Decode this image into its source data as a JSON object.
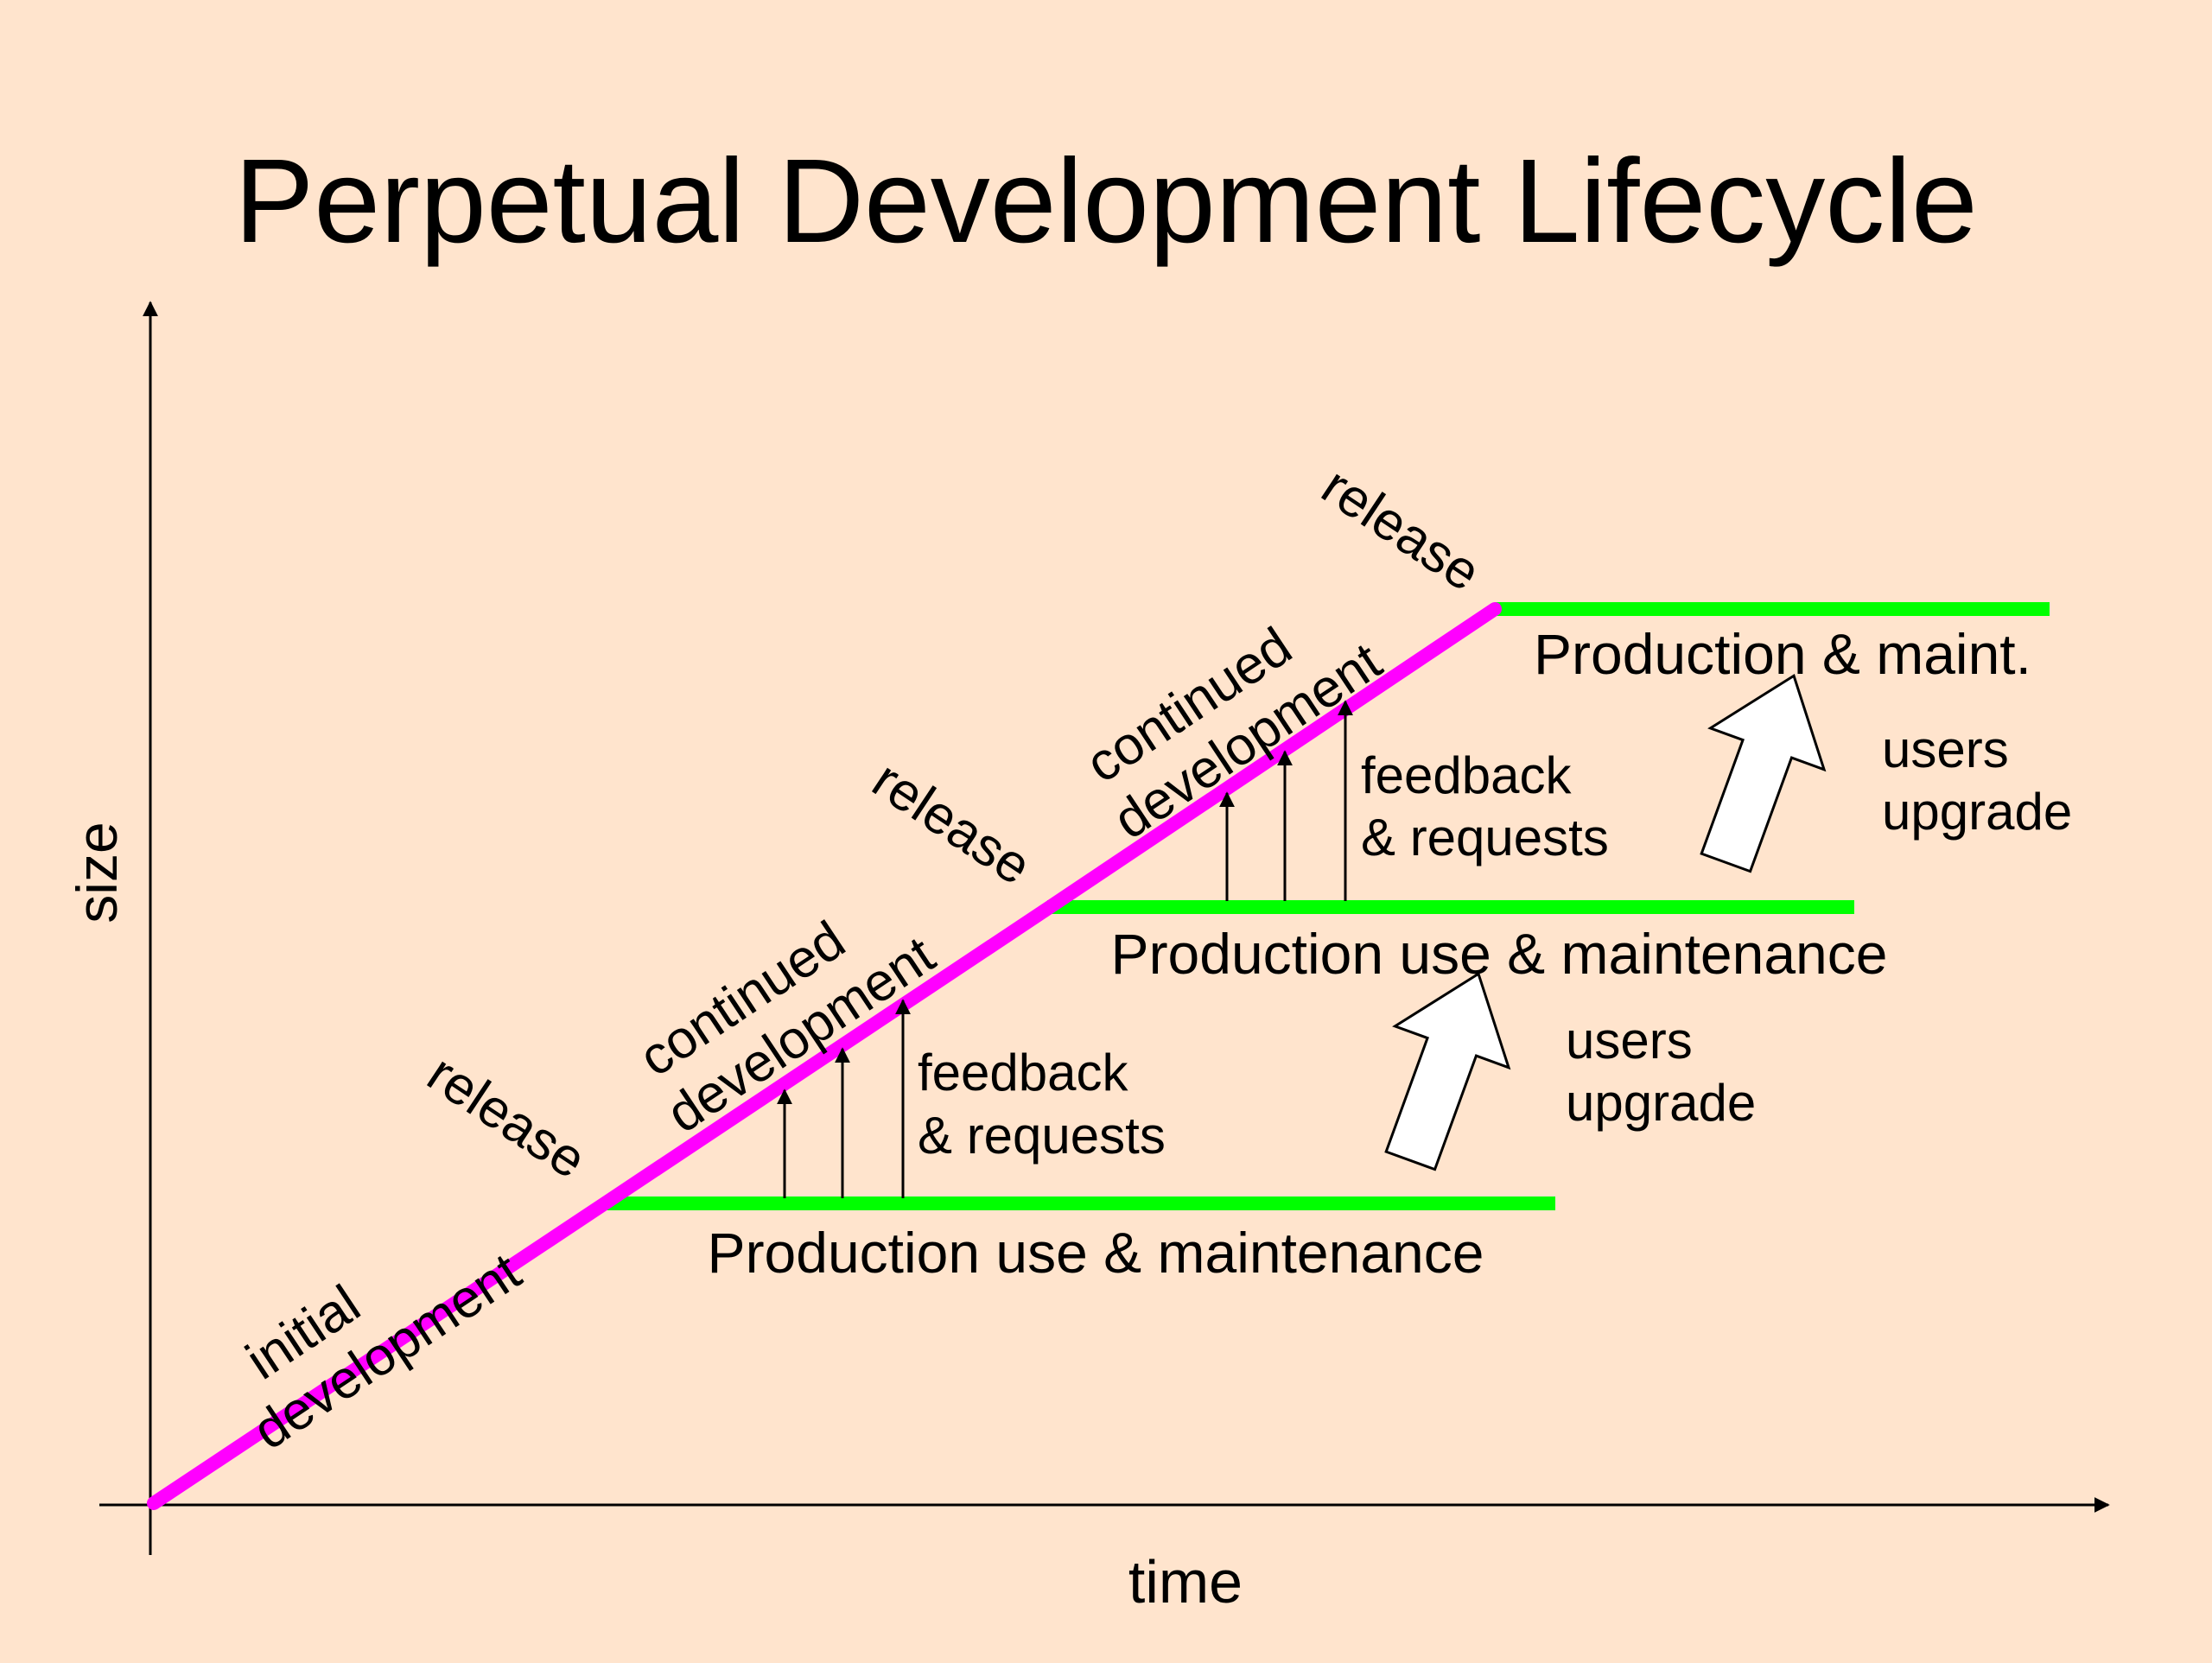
{
  "title": "Perpetual Development Lifecycle",
  "axes": {
    "x_label": "time",
    "y_label": "size"
  },
  "labels": {
    "initial_line1": "initial",
    "initial_line2": "development",
    "release": "release",
    "continued_line1": "continued",
    "continued_line2": "development",
    "production_use": "Production use & maintenance",
    "production_maint": "Production & maint.",
    "feedback_line1": "feedback",
    "feedback_line2": "& requests",
    "users_line1": "users",
    "users_line2": "upgrade"
  },
  "colors": {
    "background": "#ffe4cd",
    "development_line": "#ff00ff",
    "production_line": "#00ff00",
    "text": "#000000"
  }
}
